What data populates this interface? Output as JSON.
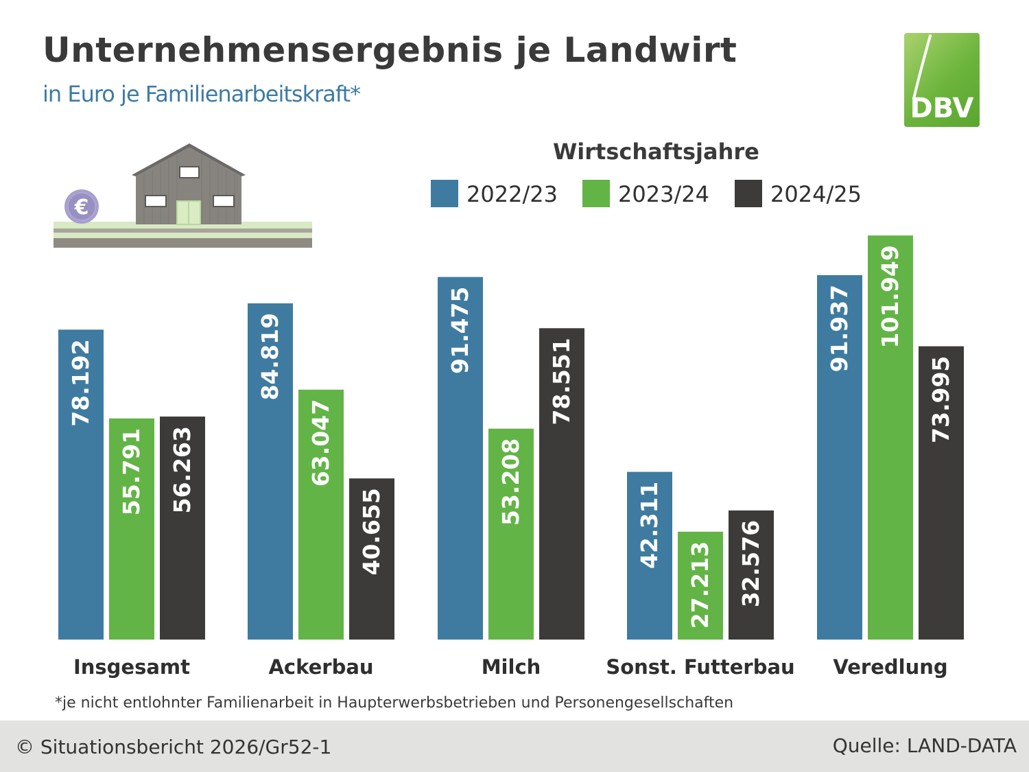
{
  "header": {
    "title": "Unternehmensergebnis je Landwirt",
    "subtitle": "in Euro je Familienarbeitskraft*"
  },
  "logo": {
    "text": "DBV"
  },
  "legend": {
    "title": "Wirtschaftsjahre",
    "items": [
      {
        "label": "2022/23",
        "color": "#3f7ba0"
      },
      {
        "label": "2023/24",
        "color": "#63b446"
      },
      {
        "label": "2024/25",
        "color": "#3c3b3a"
      }
    ]
  },
  "illustration": {
    "euro_symbol": "€"
  },
  "chart_data": {
    "type": "bar",
    "title": "Unternehmensergebnis je Landwirt",
    "ylabel": "Euro je Familienarbeitskraft",
    "ylim": [
      0,
      110000
    ],
    "categories": [
      "Insgesamt",
      "Ackerbau",
      "Milch",
      "Sonst. Futterbau",
      "Veredlung"
    ],
    "series": [
      {
        "name": "2022/23",
        "color": "#3f7ba0",
        "values": [
          78192,
          84819,
          91475,
          42311,
          91937
        ],
        "labels": [
          "78.192",
          "84.819",
          "91.475",
          "42.311",
          "91.937"
        ]
      },
      {
        "name": "2023/24",
        "color": "#63b446",
        "values": [
          55791,
          63047,
          53208,
          27213,
          101949
        ],
        "labels": [
          "55.791",
          "63.047",
          "53.208",
          "27.213",
          "101.949"
        ]
      },
      {
        "name": "2024/25",
        "color": "#3c3b3a",
        "values": [
          56263,
          40655,
          78551,
          32576,
          73995
        ],
        "labels": [
          "56.263",
          "40.655",
          "78.551",
          "32.576",
          "73.995"
        ]
      }
    ]
  },
  "footnote": "*je nicht entlohnter Familienarbeit in Haupterwerbsbetrieben und Personengesellschaften",
  "footer": {
    "left": "© Situationsbericht 2026/Gr52-1",
    "right": "Quelle: LAND-DATA"
  }
}
